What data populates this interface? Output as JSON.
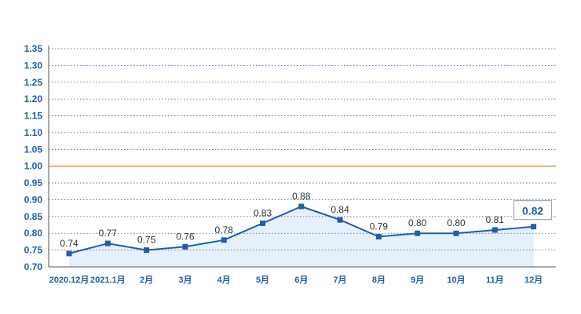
{
  "chart_data": {
    "type": "line",
    "categories": [
      "2020.12月",
      "2021.1月",
      "2月",
      "3月",
      "4月",
      "5月",
      "6月",
      "7月",
      "8月",
      "9月",
      "10月",
      "11月",
      "12月"
    ],
    "values": [
      0.74,
      0.77,
      0.75,
      0.76,
      0.78,
      0.83,
      0.88,
      0.84,
      0.79,
      0.8,
      0.8,
      0.81,
      0.82
    ],
    "value_labels": [
      "0.74",
      "0.77",
      "0.75",
      "0.76",
      "0.78",
      "0.83",
      "0.88",
      "0.84",
      "0.79",
      "0.80",
      "0.80",
      "0.81",
      "0.82"
    ],
    "yticks": [
      "0.70",
      "0.75",
      "0.80",
      "0.85",
      "0.90",
      "0.95",
      "1.00",
      "1.05",
      "1.10",
      "1.15",
      "1.20",
      "1.25",
      "1.30",
      "1.35"
    ],
    "ylim": [
      0.7,
      1.35
    ],
    "reference_line": 1.0,
    "highlight_index": 12,
    "title": "",
    "xlabel": "",
    "ylabel": "",
    "grid": true,
    "colors": {
      "line": "#1f5fa8",
      "marker": "#1f5fa8",
      "reference": "#e8823a",
      "grid": "#1f5fa8",
      "fill": "#cfe3f5",
      "tick_text": "#1f5fa8",
      "label_text": "#333333"
    }
  }
}
